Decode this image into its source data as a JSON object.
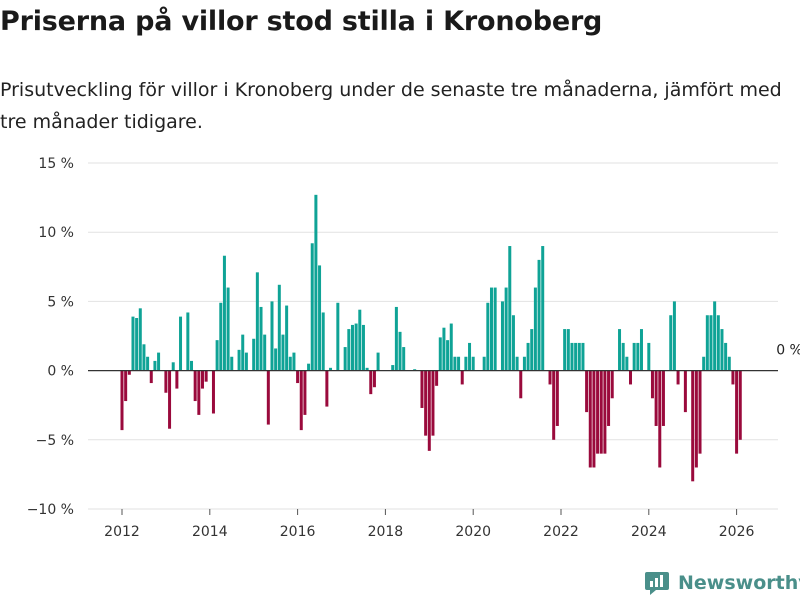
{
  "chart_data": {
    "type": "bar",
    "title": "Priserna på villor stod stilla i Kronoberg",
    "subtitle": "Prisutveckling för villor i Kronoberg under de senaste tre månaderna, jämfört med tre månader tidigare.",
    "xlabel": "",
    "ylabel": "",
    "ylim": [
      -10,
      15
    ],
    "y_ticks": [
      -10,
      -5,
      0,
      5,
      10,
      15
    ],
    "y_tick_labels": [
      "−10 %",
      "−5 %",
      "0 %",
      "5 %",
      "10 %",
      "15 %"
    ],
    "x_ticks": [
      2012,
      2014,
      2016,
      2018,
      2020,
      2022,
      2024,
      2026
    ],
    "x_tick_labels": [
      "2012",
      "2014",
      "2016",
      "2018",
      "2020",
      "2022",
      "2024",
      "2026"
    ],
    "start": "2012-01",
    "values": [
      -4.3,
      -2.2,
      -0.3,
      3.9,
      3.8,
      4.5,
      1.9,
      1.0,
      -0.9,
      0.7,
      1.3,
      0,
      -1.6,
      -4.2,
      0.6,
      -1.3,
      3.9,
      0,
      4.2,
      0.7,
      -2.2,
      -3.2,
      -1.3,
      -0.8,
      0,
      -3.1,
      2.2,
      4.9,
      8.3,
      6.0,
      1.0,
      0,
      1.5,
      2.6,
      1.3,
      0,
      2.3,
      7.1,
      4.6,
      2.6,
      -3.9,
      5.0,
      1.6,
      6.2,
      2.6,
      4.7,
      1.0,
      1.3,
      -0.9,
      -4.3,
      -3.2,
      0.5,
      9.2,
      12.7,
      7.6,
      4.2,
      -2.6,
      0.2,
      0,
      4.9,
      0,
      1.7,
      3.0,
      3.3,
      3.4,
      4.4,
      3.3,
      0.2,
      -1.7,
      -1.2,
      1.3,
      0,
      0,
      0,
      0.4,
      4.6,
      2.8,
      1.7,
      0,
      0,
      0.1,
      0,
      -2.7,
      -4.7,
      -5.8,
      -4.7,
      -1.1,
      2.4,
      3.1,
      2.2,
      3.4,
      1.0,
      1.0,
      -1.0,
      1.0,
      2.0,
      1.0,
      0,
      0,
      1.0,
      4.9,
      6.0,
      6.0,
      0,
      5.0,
      6.0,
      9.0,
      4.0,
      1.0,
      -2.0,
      1.0,
      2.0,
      3.0,
      6.0,
      8.0,
      9.0,
      0,
      -1.0,
      -5.0,
      -4.0,
      0,
      3.0,
      3.0,
      2.0,
      2.0,
      2.0,
      2.0,
      -3.0,
      -7.0,
      -7.0,
      -6.0,
      -6.0,
      -6.0,
      -4.0,
      -2.0,
      0,
      3.0,
      2.0,
      1.0,
      -1.0,
      2.0,
      2.0,
      3.0,
      0,
      2.0,
      -2.0,
      -4.0,
      -7.0,
      -4.0,
      0,
      4.0,
      5.0,
      -1.0,
      0,
      -3.0,
      0,
      -8.0,
      -7.0,
      -6.0,
      1.0,
      4.0,
      4.0,
      5.0,
      4.0,
      3.0,
      2.0,
      1.0,
      -1.0,
      -6.0,
      -5.0
    ],
    "positive_color": "#0fa396",
    "negative_color": "#9a0a3c",
    "zero_line_color": "#333333",
    "grid_color": "#e2e2e2",
    "annotation": {
      "text": "0 %",
      "at_index": 181
    }
  },
  "brand": {
    "name": "Newsworthy",
    "color": "#4a8f8a"
  }
}
